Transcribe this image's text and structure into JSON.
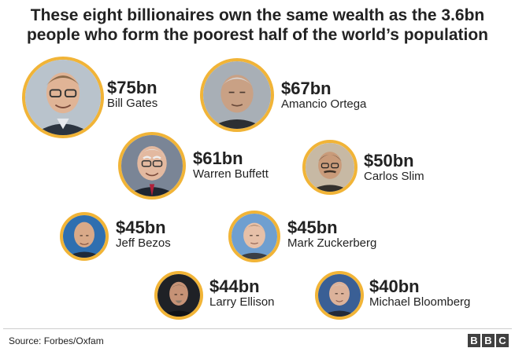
{
  "title": {
    "line1": "These eight billionaires own the same wealth as the 3.6bn",
    "line2": "people who form the poorest half of the world’s population"
  },
  "accent_color": "#f1b437",
  "people": [
    {
      "name": "Bill Gates",
      "amount": "$75bn"
    },
    {
      "name": "Amancio Ortega",
      "amount": "$67bn"
    },
    {
      "name": "Warren Buffett",
      "amount": "$61bn"
    },
    {
      "name": "Carlos Slim",
      "amount": "$50bn"
    },
    {
      "name": "Jeff Bezos",
      "amount": "$45bn"
    },
    {
      "name": "Mark Zuckerberg",
      "amount": "$45bn"
    },
    {
      "name": "Larry Ellison",
      "amount": "$44bn"
    },
    {
      "name": "Michael Bloomberg",
      "amount": "$40bn"
    }
  ],
  "footer": {
    "source": "Source: Forbes/Oxfam",
    "logo_letters": [
      "B",
      "B",
      "C"
    ]
  }
}
